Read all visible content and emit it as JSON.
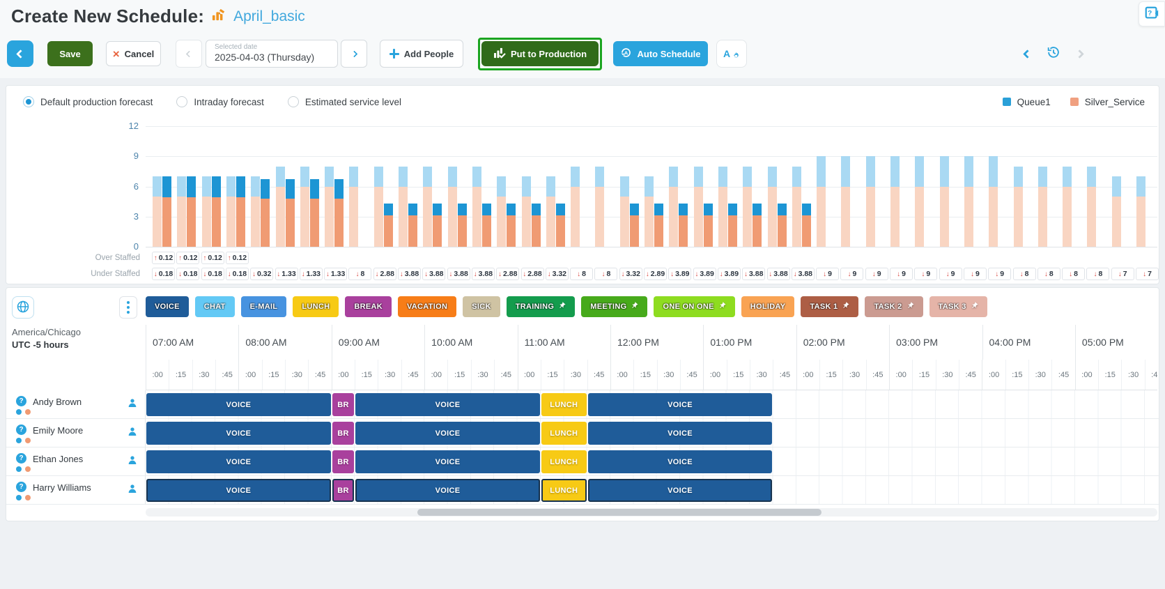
{
  "header": {
    "title": "Create New Schedule:",
    "schedule_name": "April_basic"
  },
  "toolbar": {
    "save": "Save",
    "cancel": "Cancel",
    "selected_date_label": "Selected date",
    "selected_date": "2025-04-03 (Thursday)",
    "add_people": "Add People",
    "put_to_production": "Put to Production",
    "auto_schedule": "Auto Schedule",
    "agent_prefs_letter": "A"
  },
  "forecast_panel": {
    "radios": [
      {
        "label": "Default production forecast",
        "selected": true
      },
      {
        "label": "Intraday forecast",
        "selected": false
      },
      {
        "label": "Estimated service level",
        "selected": false
      }
    ],
    "legend": [
      {
        "label": "Queue1",
        "color": "#2aa0d8"
      },
      {
        "label": "Silver_Service",
        "color": "#f0a080"
      }
    ]
  },
  "chart_data": {
    "type": "bar",
    "mode": "grouped-stacked",
    "x": [
      "07:00",
      "07:15",
      "07:30",
      "07:45",
      "08:00",
      "08:15",
      "08:30",
      "08:45",
      "09:00",
      "09:15",
      "09:30",
      "09:45",
      "10:00",
      "10:15",
      "10:30",
      "10:45",
      "11:00",
      "11:15",
      "11:30",
      "11:45",
      "12:00",
      "12:15",
      "12:30",
      "12:45",
      "13:00",
      "13:15",
      "13:30",
      "13:45",
      "14:00",
      "14:15",
      "14:30",
      "14:45",
      "15:00",
      "15:15",
      "15:30",
      "15:45",
      "16:00",
      "16:15",
      "16:30",
      "16:45",
      "17:00"
    ],
    "ylim": [
      0,
      12
    ],
    "yticks": [
      0,
      3,
      6,
      9,
      12
    ],
    "grid": true,
    "legend_position": "top-right",
    "series": [
      {
        "name": "Silver_Service forecast",
        "color": "#f9d5c2",
        "values": [
          5,
          5,
          5,
          5,
          5,
          6,
          6,
          6,
          6,
          6,
          6,
          6,
          6,
          6,
          5,
          5,
          5,
          6,
          6,
          5,
          5,
          6,
          6,
          6,
          6,
          6,
          6,
          6,
          6,
          6,
          6,
          6,
          6,
          6,
          6,
          6,
          6,
          6,
          6,
          5,
          5
        ]
      },
      {
        "name": "Queue1 forecast",
        "color": "#a9d9f3",
        "values": [
          2,
          2,
          2,
          2,
          2,
          2,
          2,
          2,
          2,
          2,
          2,
          2,
          2,
          2,
          2,
          2,
          2,
          2,
          2,
          2,
          2,
          2,
          2,
          2,
          2,
          2,
          2,
          3,
          3,
          3,
          3,
          3,
          3,
          3,
          3,
          2,
          2,
          2,
          2,
          2,
          2
        ]
      },
      {
        "name": "Silver_Service scheduled",
        "color": "#f09b73",
        "values": [
          4.9,
          4.9,
          4.9,
          4.9,
          4.8,
          4.8,
          4.8,
          4.8,
          0,
          3.1,
          3.1,
          3.1,
          3.1,
          3.1,
          3.1,
          3.1,
          3.1,
          0,
          0,
          3.1,
          3.1,
          3.1,
          3.1,
          3.1,
          3.1,
          3.1,
          3.1,
          0,
          0,
          0,
          0,
          0,
          0,
          0,
          0,
          0,
          0,
          0,
          0,
          0,
          0
        ]
      },
      {
        "name": "Queue1 scheduled",
        "color": "#1d95d4",
        "values": [
          2.1,
          2.1,
          2.1,
          2.1,
          1.9,
          1.9,
          1.9,
          1.9,
          0,
          1.2,
          1.2,
          1.2,
          1.2,
          1.2,
          1.2,
          1.2,
          1.2,
          0,
          0,
          1.2,
          1.2,
          1.2,
          1.2,
          1.2,
          1.2,
          1.2,
          1.2,
          0,
          0,
          0,
          0,
          0,
          0,
          0,
          0,
          0,
          0,
          0,
          0,
          0,
          0
        ]
      }
    ]
  },
  "staffing": {
    "over_label": "Over Staffed",
    "under_label": "Under Staffed",
    "over": [
      "0.12",
      "0.12",
      "0.12",
      "0.12"
    ],
    "under": [
      "0.18",
      "0.18",
      "0.18",
      "0.18",
      "0.32",
      "1.33",
      "1.33",
      "1.33",
      "8",
      "2.88",
      "3.88",
      "3.88",
      "3.88",
      "3.88",
      "2.88",
      "2.88",
      "3.32",
      "8",
      "8",
      "3.32",
      "2.89",
      "3.89",
      "3.89",
      "3.89",
      "3.88",
      "3.88",
      "3.88",
      "9",
      "9",
      "9",
      "9",
      "9",
      "9",
      "9",
      "9",
      "8",
      "8",
      "8",
      "8",
      "7",
      "7"
    ]
  },
  "activities": [
    {
      "id": "voice",
      "label": "VOICE",
      "color": "#1f5c99",
      "pinned": false
    },
    {
      "id": "chat",
      "label": "CHAT",
      "color": "#63c9f5",
      "pinned": false
    },
    {
      "id": "email",
      "label": "E-MAIL",
      "color": "#4793e0",
      "pinned": false
    },
    {
      "id": "lunch",
      "label": "LUNCH",
      "color": "#f7ca15",
      "pinned": false
    },
    {
      "id": "break",
      "label": "BREAK",
      "color": "#a9409d",
      "pinned": false
    },
    {
      "id": "vacation",
      "label": "VACATION",
      "color": "#f77d18",
      "pinned": false
    },
    {
      "id": "sick",
      "label": "SICK",
      "color": "#cfc3a3",
      "pinned": false
    },
    {
      "id": "training",
      "label": "TRAINING",
      "color": "#149c4d",
      "pinned": true
    },
    {
      "id": "meeting",
      "label": "MEETING",
      "color": "#47aa1b",
      "pinned": true
    },
    {
      "id": "oneonone",
      "label": "ONE ON ONE",
      "color": "#8edc20",
      "pinned": true
    },
    {
      "id": "holiday",
      "label": "HOLIDAY",
      "color": "#f9a353",
      "pinned": false
    },
    {
      "id": "task1",
      "label": "TASK 1",
      "color": "#ad5e45",
      "pinned": true
    },
    {
      "id": "task2",
      "label": "TASK 2",
      "color": "#cb9b91",
      "pinned": true
    },
    {
      "id": "task3",
      "label": "TASK 3",
      "color": "#e5b4a8",
      "pinned": true
    }
  ],
  "timezone": {
    "region": "America/Chicago",
    "utc": "UTC -5 hours"
  },
  "timeline": {
    "hours": [
      "07:00 AM",
      "08:00 AM",
      "09:00 AM",
      "10:00 AM",
      "11:00 AM",
      "12:00 PM",
      "01:00 PM",
      "02:00 PM",
      "03:00 PM",
      "04:00 PM",
      "05:00 PM"
    ],
    "quarters": [
      ":00",
      ":15",
      ":30",
      ":45"
    ]
  },
  "schedule": {
    "agents": [
      {
        "name": "Andy Brown",
        "selected": false
      },
      {
        "name": "Emily Moore",
        "selected": false
      },
      {
        "name": "Ethan Jones",
        "selected": false
      },
      {
        "name": "Harry Williams",
        "selected": true
      }
    ],
    "agent_queue_colors": [
      "#2aa4dd",
      "#f09a72"
    ],
    "shift_blocks": [
      {
        "activity": "voice",
        "label": "VOICE",
        "start": 0,
        "len": 8
      },
      {
        "activity": "break",
        "label": "BR",
        "start": 8,
        "len": 1
      },
      {
        "activity": "voice",
        "label": "VOICE",
        "start": 9,
        "len": 8
      },
      {
        "activity": "lunch",
        "label": "LUNCH",
        "start": 17,
        "len": 2
      },
      {
        "activity": "voice",
        "label": "VOICE",
        "start": 19,
        "len": 8
      }
    ]
  }
}
